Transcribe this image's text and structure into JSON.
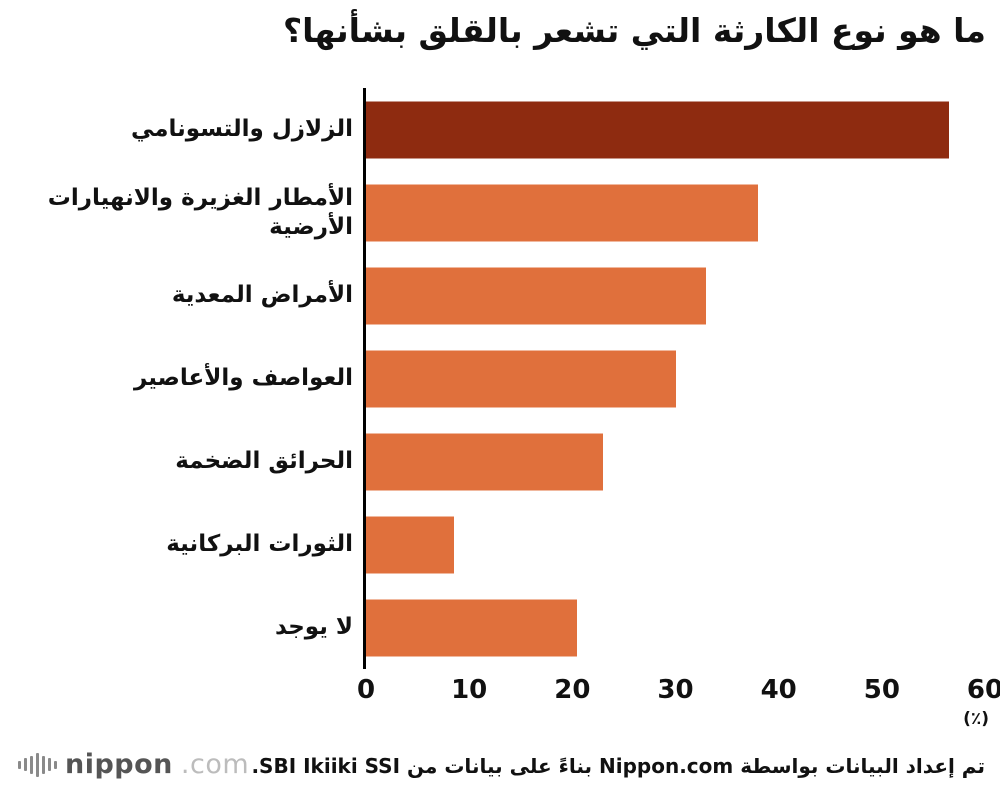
{
  "chart_data": {
    "type": "bar",
    "orientation": "horizontal",
    "title": "ما هو نوع الكارثة التي تشعر بالقلق بشأنها؟",
    "categories": [
      "الزلازل والتسونامي",
      "الأمطار الغزيرة والانهيارات الأرضية",
      "الأمراض المعدية",
      "العواصف والأعاصير",
      "الحرائق الضخمة",
      "الثورات البركانية",
      "لا يوجد"
    ],
    "values": [
      56.5,
      38,
      33,
      30,
      23,
      8.5,
      20.5
    ],
    "xlim": [
      0,
      60
    ],
    "xticks": [
      0,
      10,
      20,
      30,
      40,
      50,
      60
    ],
    "unit_label": "(٪)",
    "xlabel": "",
    "ylabel": "",
    "grid": false,
    "legend_position": "none",
    "bar_colors": [
      "#8e2b10",
      "#e0703c",
      "#e0703c",
      "#e0703c",
      "#e0703c",
      "#e0703c",
      "#e0703c"
    ]
  },
  "colors": {
    "bar_highlight": "#8e2b10",
    "bar_primary": "#e0703c",
    "axis": "#000000",
    "background": "#ffffff",
    "text": "#111111",
    "logo_dark": "#555555",
    "logo_light": "#bcbcbc"
  },
  "footer": {
    "source_text": "تم إعداد البيانات بواسطة Nippon.com بناءً على بيانات من SBI Ikiiki SSI.",
    "logo_text": "nippon",
    "logo_suffix": ".com"
  }
}
